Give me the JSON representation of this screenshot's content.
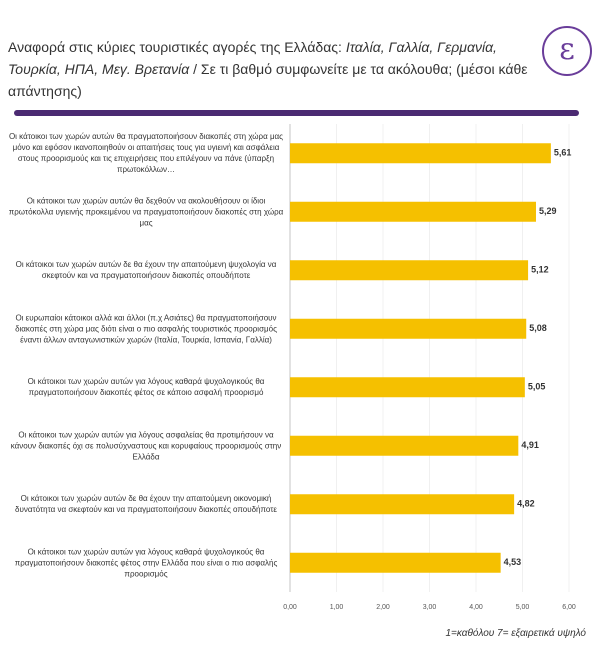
{
  "chart_data": {
    "type": "bar",
    "orientation": "horizontal",
    "title_parts": [
      "Αναφορά στις κύριες τουριστικές αγορές της Ελλάδας: ",
      "Ιταλία, Γαλλία, Γερμανία, Τουρκία, ΗΠΑ, Μεγ. Βρετανία",
      " / Σε τι βαθμό συμφωνείτε με τα ακόλουθα; (μέσοι κάθε απάντησης)"
    ],
    "logo": "ε",
    "categories": [
      "Οι κάτοικοι των χωρών αυτών θα πραγματοποιήσουν διακοπές στη χώρα μας μόνο και εφόσον ικανοποιηθούν οι απαιτήσεις τους για υγιεινή και ασφάλεια στους προορισμούς και τις επιχειρήσεις που επιλέγουν να πάνε (ύπαρξη πρωτοκόλλων…",
      "Οι κάτοικοι των χωρών αυτών θα δεχθούν να ακολουθήσουν οι ίδιοι πρωτόκολλα υγιεινής προκειμένου να πραγματοποιήσουν διακοπές στη χώρα μας",
      "Οι κάτοικοι των χωρών αυτών δε θα έχουν την απαιτούμενη ψυχολογία να σκεφτούν και να πραγματοποιήσουν διακοπές οπουδήποτε",
      "Οι ευρωπαίοι κάτοικοι αλλά και άλλοι (π.χ Ασιάτες) θα πραγματοποιήσουν διακοπές στη χώρα μας διότι είναι ο πιο ασφαλής τουριστικός προορισμός έναντι άλλων ανταγωνιστικών χωρών (Ιταλία, Τουρκία, Ισπανία, Γαλλία)",
      "Οι κάτοικοι των χωρών αυτών για λόγους καθαρά ψυχολογικούς θα πραγματοποιήσουν διακοπές φέτος σε κάποιο ασφαλή προορισμό",
      "Οι κάτοικοι των χωρών αυτών για λόγους ασφαλείας θα προτιμήσουν να κάνουν διακοπές όχι σε πολυσύχναστους και κορυφαίους προορισμούς στην Ελλάδα",
      "Οι κάτοικοι των χωρών αυτών δε θα έχουν την απαιτούμενη οικονομική δυνατότητα να σκεφτούν και να πραγματοποιήσουν διακοπές οπουδήποτε",
      "Οι κάτοικοι των χωρών αυτών για λόγους καθαρά ψυχολογικούς θα πραγματοποιήσουν διακοπές φέτος στην Ελλάδα που είναι ο πιο ασφαλής προορισμός"
    ],
    "values": [
      5.61,
      5.29,
      5.12,
      5.08,
      5.05,
      4.91,
      4.82,
      4.53
    ],
    "value_labels": [
      "5,61",
      "5,29",
      "5,12",
      "5,08",
      "5,05",
      "4,91",
      "4,82",
      "4,53"
    ],
    "color": "#f5c000",
    "xlim": [
      0,
      6
    ],
    "xticks": [
      {
        "value": 0,
        "label": "0,00"
      },
      {
        "value": 1,
        "label": "1,00"
      },
      {
        "value": 2,
        "label": "2,00"
      },
      {
        "value": 3,
        "label": "3,00"
      },
      {
        "value": 4,
        "label": "4,00"
      },
      {
        "value": 5,
        "label": "5,00"
      },
      {
        "value": 6,
        "label": "6,00"
      }
    ],
    "grid": true,
    "note": "1=καθόλου 7= εξαιρετικά υψηλό"
  }
}
